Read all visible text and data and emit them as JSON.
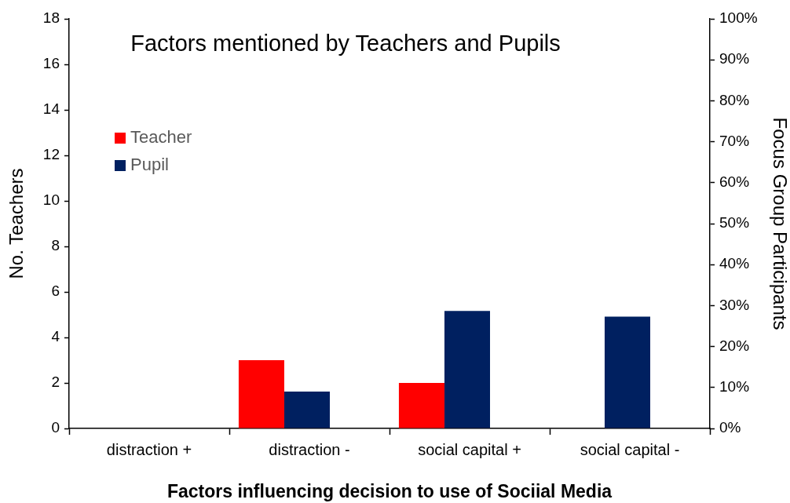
{
  "chart_data": {
    "type": "bar",
    "title": "Factors mentioned by Teachers and Pupils",
    "xlabel": "Factors influencing decision to use of Sociial Media",
    "ylabel": "No. Teachers",
    "y2label": "Focus Group Participants",
    "categories": [
      "distraction +",
      "distraction -",
      "social capital +",
      "social capital -"
    ],
    "series": [
      {
        "name": "Teacher",
        "color": "#ff0000",
        "values": [
          0,
          3,
          2,
          0
        ]
      },
      {
        "name": "Pupil",
        "color": "#002060",
        "values": [
          0,
          9,
          28.7,
          27.3
        ],
        "axis": "y2"
      }
    ],
    "ylim": [
      0,
      18
    ],
    "yticks": [
      0,
      2,
      4,
      6,
      8,
      10,
      12,
      14,
      16,
      18
    ],
    "y2lim": [
      0,
      100
    ],
    "y2ticks": [
      {
        "value": 0,
        "label": "0%"
      },
      {
        "value": 10,
        "label": "10%"
      },
      {
        "value": 20,
        "label": "20%"
      },
      {
        "value": 30,
        "label": "30%"
      },
      {
        "value": 40,
        "label": "40%"
      },
      {
        "value": 50,
        "label": "50%"
      },
      {
        "value": 60,
        "label": "60%"
      },
      {
        "value": 70,
        "label": "70%"
      },
      {
        "value": 80,
        "label": "80%"
      },
      {
        "value": 90,
        "label": "90%"
      },
      {
        "value": 100,
        "label": "100%"
      }
    ],
    "grid": false,
    "legend": "top left"
  }
}
